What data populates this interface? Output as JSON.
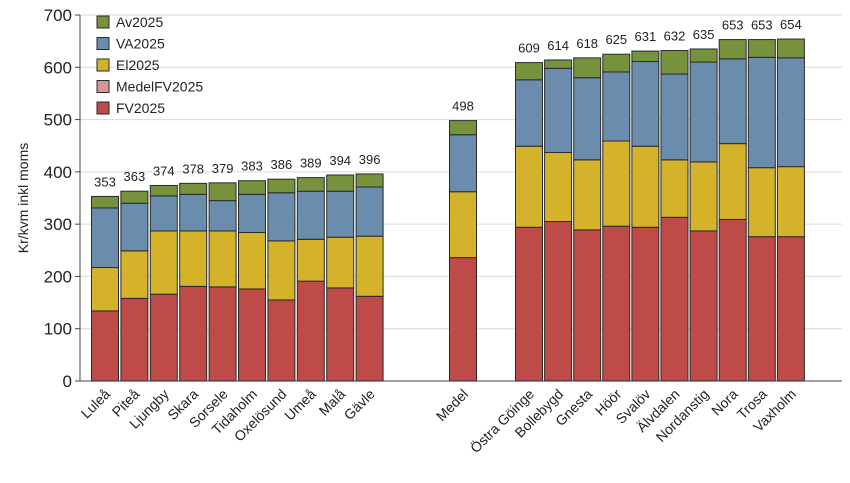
{
  "chart_data": {
    "type": "bar",
    "stacked": true,
    "title": "",
    "xlabel": "",
    "ylabel": "Kr/kvm inkl moms",
    "ylim": [
      0,
      700
    ],
    "yticks": [
      0,
      100,
      200,
      300,
      400,
      500,
      600,
      700
    ],
    "grid": true,
    "legend_position": "top-left",
    "categories": [
      "Luleå",
      "Piteå",
      "Ljungby",
      "Skara",
      "Sorsele",
      "Tidaholm",
      "Oxelösund",
      "Umeå",
      "Malå",
      "Gävle",
      "Medel",
      "Östra Göinge",
      "Bollebygd",
      "Gnesta",
      "Höör",
      "Svalöv",
      "Älvdalen",
      "Nordanstig",
      "Nora",
      "Trosa",
      "Vaxholm"
    ],
    "totals": [
      353,
      363,
      374,
      378,
      379,
      383,
      386,
      389,
      394,
      396,
      498,
      609,
      614,
      618,
      625,
      631,
      632,
      635,
      653,
      653,
      654
    ],
    "series": [
      {
        "name": "FV2025",
        "color": "#be4b48",
        "values": [
          134,
          158,
          166,
          181,
          180,
          176,
          155,
          191,
          178,
          162,
          236,
          294,
          305,
          289,
          296,
          294,
          313,
          287,
          309,
          276,
          276
        ]
      },
      {
        "name": "MedelFV2025",
        "color": "#d99594",
        "values": [
          0,
          0,
          0,
          0,
          0,
          0,
          0,
          0,
          0,
          0,
          0,
          0,
          0,
          0,
          0,
          0,
          0,
          0,
          0,
          0,
          0
        ]
      },
      {
        "name": "El2025",
        "color": "#d4b22a",
        "values": [
          83,
          91,
          121,
          106,
          107,
          108,
          113,
          80,
          97,
          115,
          126,
          155,
          132,
          134,
          163,
          155,
          110,
          132,
          145,
          132,
          134
        ]
      },
      {
        "name": "VA2025",
        "color": "#6a8cad",
        "values": [
          114,
          91,
          67,
          70,
          58,
          73,
          92,
          92,
          88,
          94,
          109,
          127,
          161,
          157,
          132,
          162,
          164,
          191,
          162,
          211,
          208
        ]
      },
      {
        "name": "Av2025",
        "color": "#76923c",
        "values": [
          22,
          23,
          20,
          21,
          34,
          26,
          26,
          26,
          31,
          25,
          27,
          33,
          16,
          38,
          34,
          20,
          45,
          25,
          37,
          34,
          36
        ]
      }
    ]
  }
}
